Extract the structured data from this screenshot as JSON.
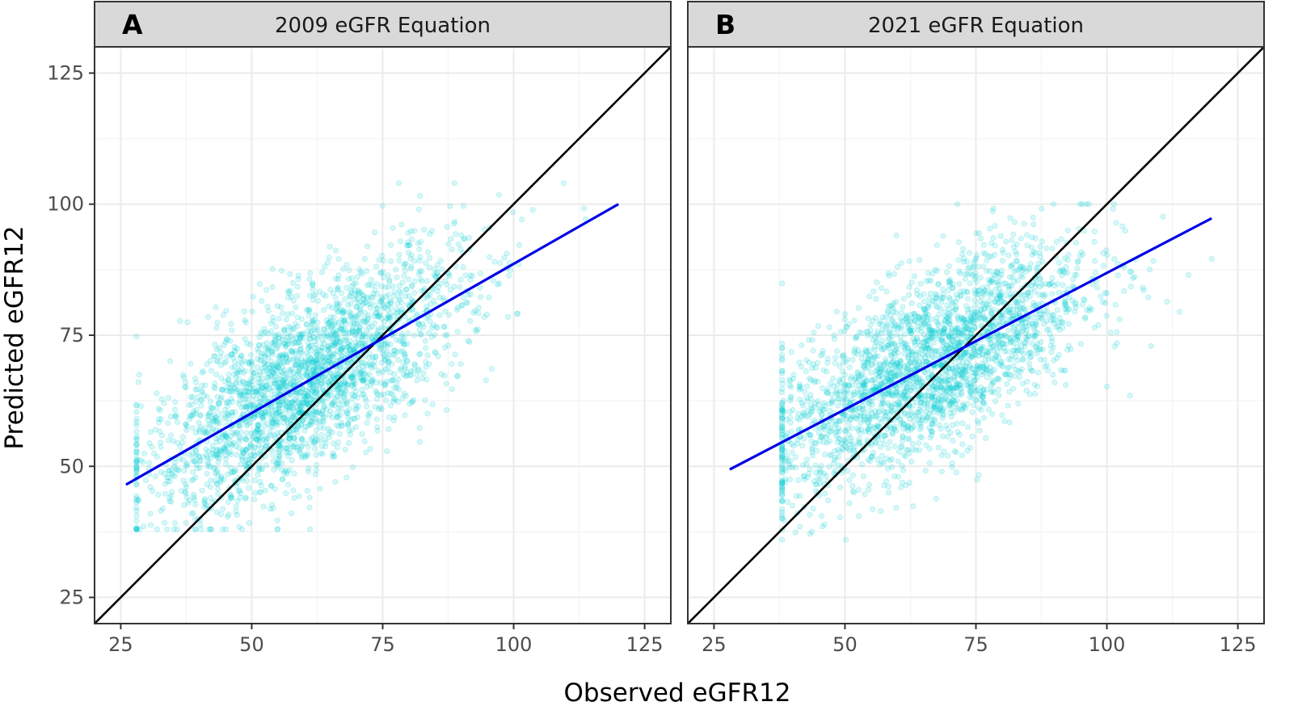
{
  "figure": {
    "xlabel": "Observed eGFR12",
    "ylabel": "Predicted eGFR12"
  },
  "colors": {
    "points": "#00CED1",
    "fit_line": "#0000E6",
    "identity_line": "#000000",
    "strip_fill": "#D9D9D9",
    "grid_major": "#EBEBEB",
    "grid_minor": "#F4F4F4"
  },
  "chart_data": [
    {
      "type": "scatter",
      "panel_tag": "A",
      "title": "2009 eGFR Equation",
      "xlabel": "Observed eGFR12",
      "ylabel": "Predicted eGFR12",
      "xlim": [
        20,
        130
      ],
      "ylim": [
        20,
        130
      ],
      "x_ticks": [
        25,
        50,
        75,
        100,
        125
      ],
      "y_ticks": [
        25,
        50,
        75,
        100,
        125
      ],
      "grid": true,
      "points": {
        "x_range": [
          28,
          120
        ],
        "y_range": [
          38,
          104
        ],
        "center": [
          60,
          68
        ],
        "description_values": "dense point cloud"
      },
      "regression_line": {
        "x": [
          26,
          120
        ],
        "y": [
          46.5,
          100
        ]
      },
      "identity_line": {
        "x": [
          20,
          130
        ],
        "y": [
          20,
          130
        ]
      }
    },
    {
      "type": "scatter",
      "panel_tag": "B",
      "title": "2021 eGFR Equation",
      "xlabel": "Observed eGFR12",
      "ylabel": "Predicted eGFR12",
      "xlim": [
        20,
        130
      ],
      "ylim": [
        20,
        130
      ],
      "x_ticks": [
        25,
        50,
        75,
        100,
        125
      ],
      "y_ticks": [
        25,
        50,
        75,
        100,
        125
      ],
      "grid": true,
      "points": {
        "x_range": [
          38,
          120
        ],
        "y_range": [
          36,
          100
        ],
        "center": [
          66,
          66
        ],
        "description_values": "dense point cloud"
      },
      "regression_line": {
        "x": [
          28,
          120
        ],
        "y": [
          49.4,
          97.3
        ]
      },
      "identity_line": {
        "x": [
          20,
          130
        ],
        "y": [
          20,
          130
        ]
      }
    }
  ]
}
